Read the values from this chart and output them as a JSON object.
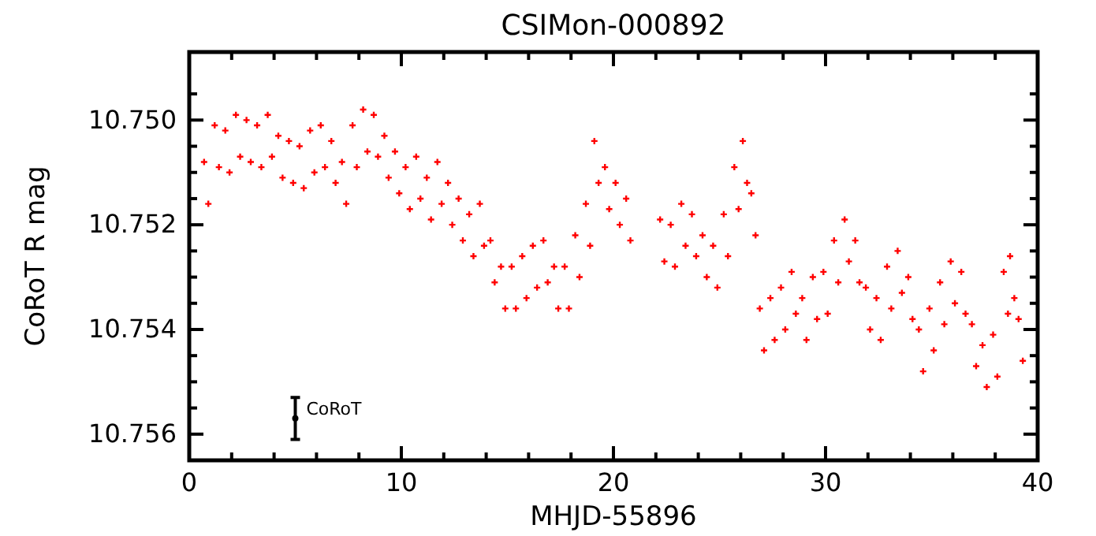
{
  "chart_data": {
    "type": "scatter",
    "title": "CSIMon-000892",
    "xlabel": "MHJD-55896",
    "ylabel": "CoRoT R mag",
    "xlim": [
      0,
      40
    ],
    "ylim": [
      10.7565,
      10.7487
    ],
    "xticks": [
      0,
      {
        "value": 2,
        "label": null
      },
      {
        "value": 4,
        "label": null
      },
      {
        "value": 6,
        "label": null
      },
      {
        "value": 8,
        "label": null
      },
      10,
      {
        "value": 12,
        "label": null
      },
      {
        "value": 14,
        "label": null
      },
      {
        "value": 16,
        "label": null
      },
      {
        "value": 18,
        "label": null
      },
      20,
      {
        "value": 22,
        "label": null
      },
      {
        "value": 24,
        "label": null
      },
      {
        "value": 26,
        "label": null
      },
      {
        "value": 28,
        "label": null
      },
      30,
      {
        "value": 32,
        "label": null
      },
      {
        "value": 34,
        "label": null
      },
      {
        "value": 36,
        "label": null
      },
      {
        "value": 38,
        "label": null
      },
      40
    ],
    "yticks": [
      {
        "value": 10.7495,
        "label": null
      },
      {
        "value": 10.75,
        "label": "10.750"
      },
      {
        "value": 10.7505,
        "label": null
      },
      {
        "value": 10.751,
        "label": null
      },
      {
        "value": 10.7515,
        "label": null
      },
      {
        "value": 10.752,
        "label": "10.752"
      },
      {
        "value": 10.7525,
        "label": null
      },
      {
        "value": 10.753,
        "label": null
      },
      {
        "value": 10.7535,
        "label": null
      },
      {
        "value": 10.754,
        "label": "10.754"
      },
      {
        "value": 10.7545,
        "label": null
      },
      {
        "value": 10.755,
        "label": null
      },
      {
        "value": 10.7555,
        "label": null
      },
      {
        "value": 10.756,
        "label": "10.756"
      }
    ],
    "grid": false,
    "marker": "cross",
    "series": [
      {
        "color": "#ff0000",
        "x": [
          0.7,
          0.9,
          1.2,
          1.4,
          1.7,
          1.9,
          2.2,
          2.4,
          2.7,
          2.9,
          3.2,
          3.4,
          3.7,
          3.9,
          4.2,
          4.4,
          4.7,
          4.9,
          5.2,
          5.4,
          5.7,
          5.9,
          6.2,
          6.4,
          6.7,
          6.9,
          7.2,
          7.4,
          7.7,
          7.9,
          8.2,
          8.4,
          8.7,
          8.9,
          9.2,
          9.4,
          9.7,
          9.9,
          10.2,
          10.4,
          10.7,
          10.9,
          11.2,
          11.4,
          11.7,
          11.9,
          12.2,
          12.4,
          12.7,
          12.9,
          13.2,
          13.4,
          13.7,
          13.9,
          14.2,
          14.4,
          14.7,
          14.9,
          15.2,
          15.4,
          15.7,
          15.9,
          16.2,
          16.4,
          16.7,
          16.9,
          17.2,
          17.4,
          17.7,
          17.9,
          18.2,
          18.4,
          18.7,
          18.9,
          19.1,
          19.3,
          19.6,
          19.8,
          20.1,
          20.3,
          20.6,
          20.8,
          22.2,
          22.4,
          22.7,
          22.9,
          23.2,
          23.4,
          23.7,
          23.9,
          24.2,
          24.4,
          24.7,
          24.9,
          25.2,
          25.4,
          25.7,
          25.9,
          26.1,
          26.3,
          26.5,
          26.7,
          26.9,
          27.1,
          27.4,
          27.6,
          27.9,
          28.1,
          28.4,
          28.6,
          28.9,
          29.1,
          29.4,
          29.6,
          29.9,
          30.1,
          30.4,
          30.6,
          30.9,
          31.1,
          31.4,
          31.6,
          31.9,
          32.1,
          32.4,
          32.6,
          32.9,
          33.1,
          33.4,
          33.6,
          33.9,
          34.1,
          34.4,
          34.6,
          34.9,
          35.1,
          35.4,
          35.6,
          35.9,
          36.1,
          36.4,
          36.6,
          36.9,
          37.1,
          37.4,
          37.6,
          37.9,
          38.1,
          38.4,
          38.6,
          38.7,
          38.9,
          39.1,
          39.3
        ],
        "values": [
          10.7508,
          10.7516,
          10.7501,
          10.7509,
          10.7502,
          10.751,
          10.7499,
          10.7507,
          10.75,
          10.7508,
          10.7501,
          10.7509,
          10.7499,
          10.7507,
          10.7503,
          10.7511,
          10.7504,
          10.7512,
          10.7505,
          10.7513,
          10.7502,
          10.751,
          10.7501,
          10.7509,
          10.7504,
          10.7512,
          10.7508,
          10.7516,
          10.7501,
          10.7509,
          10.7498,
          10.7506,
          10.7499,
          10.7507,
          10.7503,
          10.7511,
          10.7506,
          10.7514,
          10.7509,
          10.7517,
          10.7507,
          10.7515,
          10.7511,
          10.7519,
          10.7508,
          10.7516,
          10.7512,
          10.752,
          10.7515,
          10.7523,
          10.7518,
          10.7526,
          10.7516,
          10.7524,
          10.7523,
          10.7531,
          10.7528,
          10.7536,
          10.7528,
          10.7536,
          10.7526,
          10.7534,
          10.7524,
          10.7532,
          10.7523,
          10.7531,
          10.7528,
          10.7536,
          10.7528,
          10.7536,
          10.7522,
          10.753,
          10.7516,
          10.7524,
          10.7504,
          10.7512,
          10.7509,
          10.7517,
          10.7512,
          10.752,
          10.7515,
          10.7523,
          10.7519,
          10.7527,
          10.752,
          10.7528,
          10.7516,
          10.7524,
          10.7518,
          10.7526,
          10.7522,
          10.753,
          10.7524,
          10.7532,
          10.7518,
          10.7526,
          10.7509,
          10.7517,
          10.7504,
          10.7512,
          10.7514,
          10.7522,
          10.7536,
          10.7544,
          10.7534,
          10.7542,
          10.7532,
          10.754,
          10.7529,
          10.7537,
          10.7534,
          10.7542,
          10.753,
          10.7538,
          10.7529,
          10.7537,
          10.7523,
          10.7531,
          10.7519,
          10.7527,
          10.7523,
          10.7531,
          10.7532,
          10.754,
          10.7534,
          10.7542,
          10.7528,
          10.7536,
          10.7525,
          10.7533,
          10.753,
          10.7538,
          10.754,
          10.7548,
          10.7536,
          10.7544,
          10.7531,
          10.7539,
          10.7527,
          10.7535,
          10.7529,
          10.7537,
          10.7539,
          10.7547,
          10.7543,
          10.7551,
          10.7541,
          10.7549,
          10.7529,
          10.7537,
          10.7526,
          10.7534,
          10.7538,
          10.7546
        ]
      },
      {
        "name": "CoRoT",
        "color": "#000000",
        "marker": "circle",
        "x": [
          5
        ],
        "values": [
          10.7557
        ],
        "errors": [
          0.0004
        ]
      }
    ]
  }
}
